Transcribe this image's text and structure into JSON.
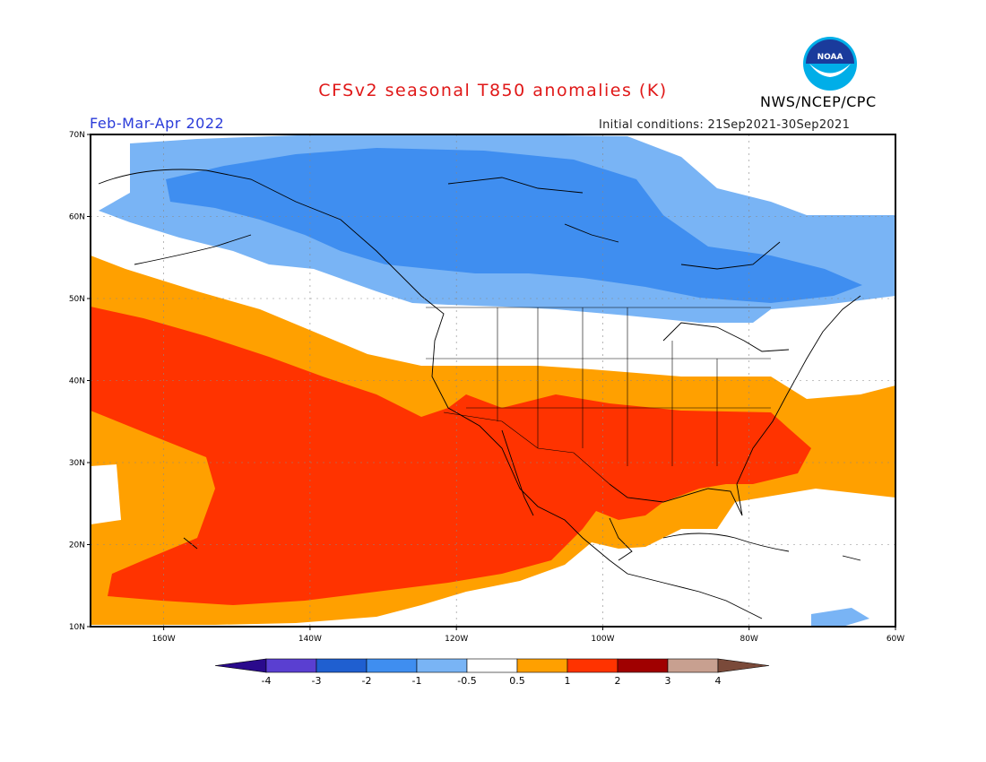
{
  "title": "CFSv2 seasonal T850 anomalies (K)",
  "agency": "NWS/NCEP/CPC",
  "logo_text": "NOAA",
  "period": "Feb-Mar-Apr 2022",
  "initial_conditions": "Initial conditions: 21Sep2021-30Sep2021",
  "map": {
    "lon_range": [
      -170,
      -60
    ],
    "lat_range": [
      10,
      70
    ],
    "lat_ticks": [
      "10N",
      "20N",
      "30N",
      "40N",
      "50N",
      "60N",
      "70N"
    ],
    "lon_ticks": [
      "160W",
      "140W",
      "120W",
      "100W",
      "80W",
      "60W"
    ],
    "anomaly_regions": [
      {
        "level": "1 to 2",
        "color": "#ff3300",
        "description_region": "subtropical Pacific and southern/central US"
      },
      {
        "level": "0.5 to 1",
        "color": "#ffa000",
        "description_region": "surrounding warm band"
      },
      {
        "level": "-0.5 to -1",
        "color": "#79b4f5",
        "description_region": "Alaska and Canada"
      },
      {
        "level": "-1 to -2",
        "color": "#3f8ef0",
        "description_region": "central Canada and Gulf of Alaska"
      }
    ]
  },
  "colorbar": {
    "labels": [
      "-4",
      "-3",
      "-2",
      "-1",
      "-0.5",
      "0.5",
      "1",
      "2",
      "3",
      "4"
    ],
    "colors": [
      "#2a0a8c",
      "#5a3fd1",
      "#1f5fd0",
      "#3f8ef0",
      "#79b4f5",
      "#ffffff",
      "#ffa000",
      "#ff3300",
      "#a00000",
      "#c8a090",
      "#7a4a3a"
    ]
  }
}
